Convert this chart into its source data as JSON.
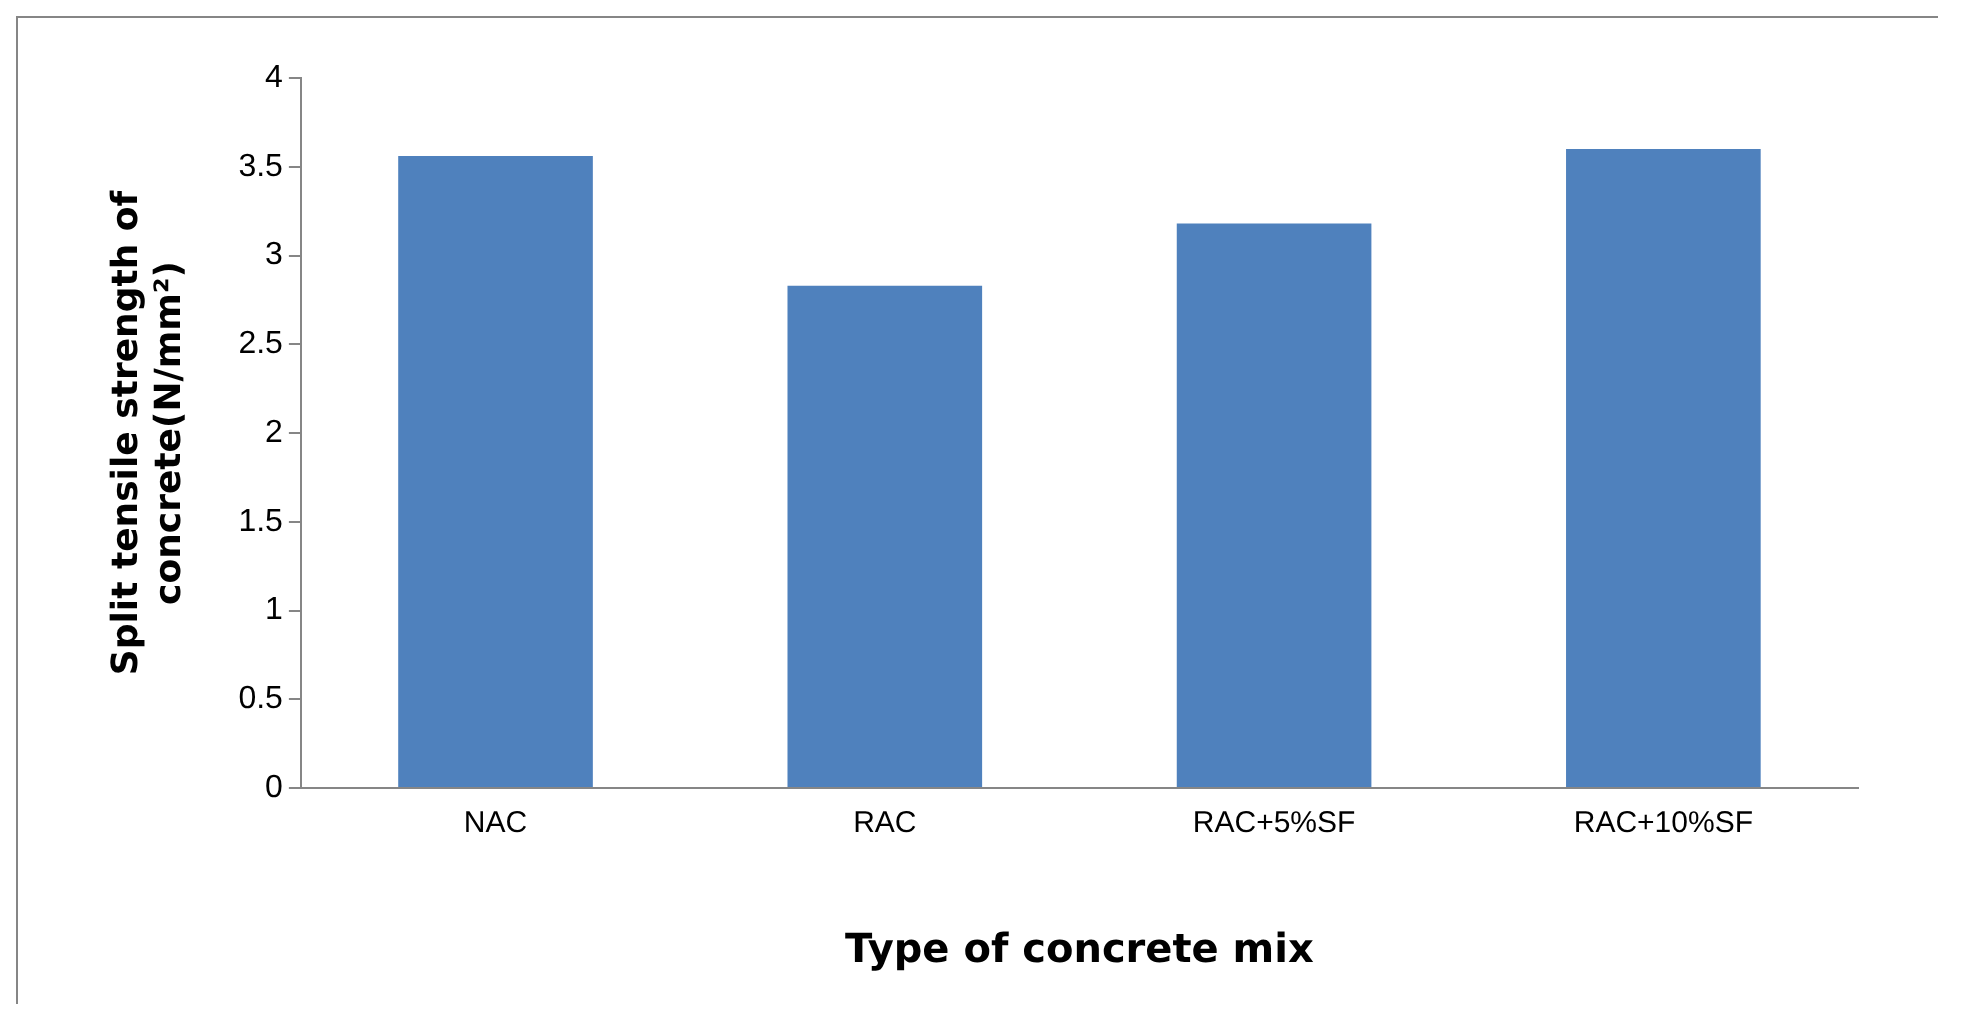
{
  "chart_data": {
    "type": "bar",
    "xlabel": "Type of concrete mix",
    "ylabel": "Split tensile strength of concrete(N/mm²)",
    "categories": [
      "NAC",
      "RAC",
      "RAC+5%SF",
      "RAC+10%SF"
    ],
    "values": [
      3.56,
      2.83,
      3.18,
      3.6
    ],
    "color": "#4f81bd",
    "ylim": [
      0,
      4
    ],
    "yticks": [
      0,
      0.5,
      1,
      1.5,
      2,
      2.5,
      3,
      3.5,
      4
    ],
    "grid": false,
    "legend": false
  }
}
